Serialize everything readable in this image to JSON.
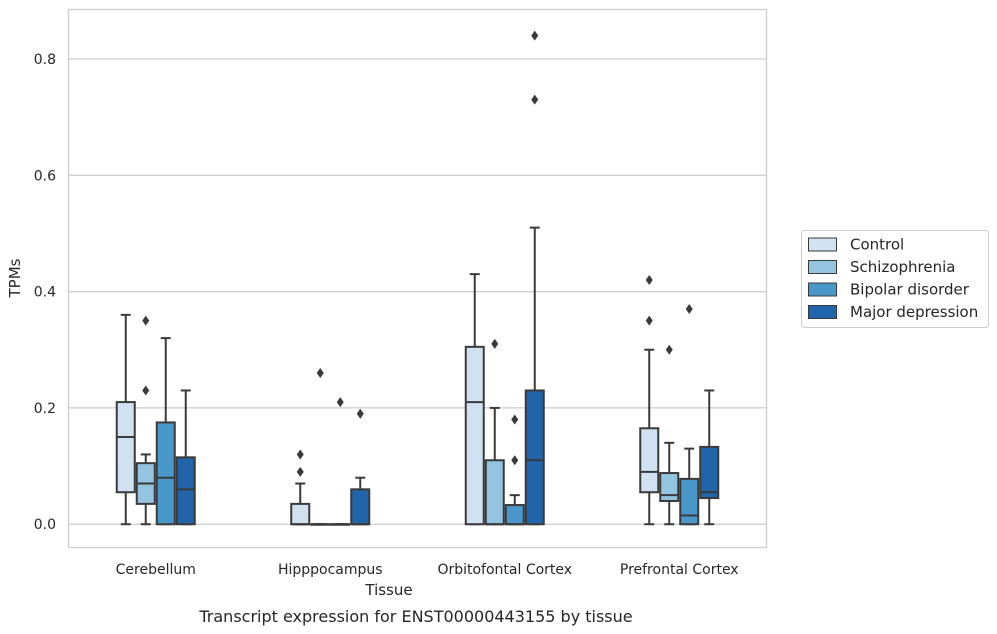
{
  "chart_data": {
    "type": "box",
    "title": "Transcript expression for ENST00000443155 by tissue",
    "xlabel": "Tissue",
    "ylabel": "TPMs",
    "ylim": [
      -0.04,
      0.885
    ],
    "yticks": [
      0.0,
      0.2,
      0.4,
      0.6,
      0.8
    ],
    "ytick_labels": [
      "0.0",
      "0.2",
      "0.4",
      "0.6",
      "0.8"
    ],
    "grid": "horizontal",
    "legend_position": "right",
    "categories": [
      "Cerebellum",
      "Hipppocampus",
      "Orbitofontal Cortex",
      "Prefrontal Cortex"
    ],
    "series": [
      {
        "name": "Control",
        "color": "#d0e1f2",
        "boxes": [
          {
            "min": 0.0,
            "q1": 0.055,
            "median": 0.15,
            "q3": 0.21,
            "max": 0.36,
            "outliers": []
          },
          {
            "min": 0.0,
            "q1": 0.0,
            "median": 0.0,
            "q3": 0.035,
            "max": 0.07,
            "outliers": [
              0.09,
              0.12
            ]
          },
          {
            "min": 0.0,
            "q1": 0.0,
            "median": 0.21,
            "q3": 0.305,
            "max": 0.43,
            "outliers": []
          },
          {
            "min": 0.0,
            "q1": 0.055,
            "median": 0.09,
            "q3": 0.165,
            "max": 0.3,
            "outliers": [
              0.35,
              0.42
            ]
          }
        ]
      },
      {
        "name": "Schizophrenia",
        "color": "#94c4df",
        "boxes": [
          {
            "min": 0.0,
            "q1": 0.035,
            "median": 0.07,
            "q3": 0.105,
            "max": 0.12,
            "outliers": [
              0.23,
              0.35
            ]
          },
          {
            "min": 0.0,
            "q1": 0.0,
            "median": 0.0,
            "q3": 0.0,
            "max": 0.0,
            "outliers": [
              0.26
            ]
          },
          {
            "min": 0.0,
            "q1": 0.0,
            "median": 0.0,
            "q3": 0.11,
            "max": 0.2,
            "outliers": [
              0.31
            ]
          },
          {
            "min": 0.0,
            "q1": 0.04,
            "median": 0.05,
            "q3": 0.088,
            "max": 0.14,
            "outliers": [
              0.3
            ]
          }
        ]
      },
      {
        "name": "Bipolar disorder",
        "color": "#4a98c9",
        "boxes": [
          {
            "min": 0.0,
            "q1": 0.0,
            "median": 0.08,
            "q3": 0.175,
            "max": 0.32,
            "outliers": []
          },
          {
            "min": 0.0,
            "q1": 0.0,
            "median": 0.0,
            "q3": 0.0,
            "max": 0.0,
            "outliers": [
              0.21
            ]
          },
          {
            "min": 0.0,
            "q1": 0.0,
            "median": 0.0,
            "q3": 0.033,
            "max": 0.05,
            "outliers": [
              0.11,
              0.18
            ]
          },
          {
            "min": 0.0,
            "q1": 0.0,
            "median": 0.015,
            "q3": 0.078,
            "max": 0.13,
            "outliers": [
              0.37
            ]
          }
        ]
      },
      {
        "name": "Major depression",
        "color": "#2064aa",
        "boxes": [
          {
            "min": 0.0,
            "q1": 0.0,
            "median": 0.06,
            "q3": 0.115,
            "max": 0.23,
            "outliers": []
          },
          {
            "min": 0.0,
            "q1": 0.0,
            "median": 0.0,
            "q3": 0.06,
            "max": 0.08,
            "outliers": [
              0.19
            ]
          },
          {
            "min": 0.0,
            "q1": 0.0,
            "median": 0.11,
            "q3": 0.23,
            "max": 0.51,
            "outliers": [
              0.73,
              0.84
            ]
          },
          {
            "min": 0.0,
            "q1": 0.045,
            "median": 0.055,
            "q3": 0.133,
            "max": 0.23,
            "outliers": []
          }
        ]
      }
    ]
  }
}
